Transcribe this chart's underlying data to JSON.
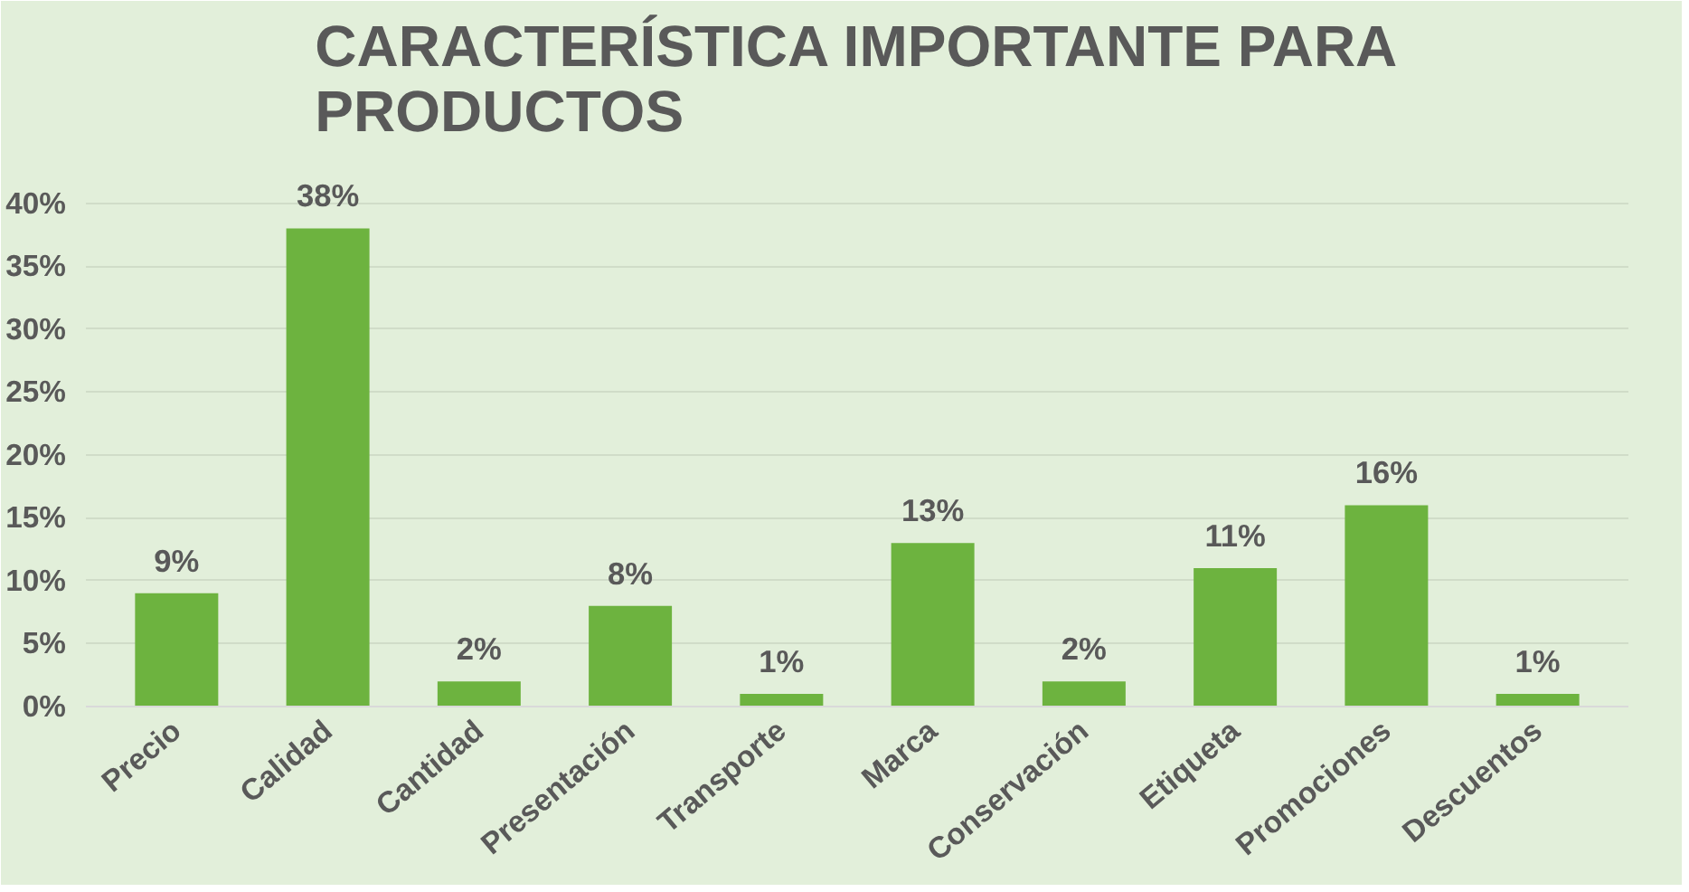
{
  "chart_data": {
    "type": "bar",
    "title": "CARACTERÍSTICA IMPORTANTE PARA PRODUCTOS",
    "categories": [
      "Precio",
      "Calidad",
      "Cantidad",
      "Presentación",
      "Transporte",
      "Marca",
      "Conservación",
      "Etiqueta",
      "Promociones",
      "Descuentos"
    ],
    "values": [
      9,
      38,
      2,
      8,
      1,
      13,
      2,
      11,
      16,
      1
    ],
    "value_labels": [
      "9%",
      "38%",
      "2%",
      "8%",
      "1%",
      "13%",
      "2%",
      "11%",
      "16%",
      "1%"
    ],
    "color": "#6db33f",
    "ylim": [
      0,
      44
    ],
    "yticks": [
      {
        "value": 0,
        "label": "0%"
      },
      {
        "value": 5,
        "label": "5%"
      },
      {
        "value": 10,
        "label": "10%"
      },
      {
        "value": 15,
        "label": "15%"
      },
      {
        "value": 20,
        "label": "20%"
      },
      {
        "value": 25,
        "label": "25%"
      },
      {
        "value": 30,
        "label": "30%"
      },
      {
        "value": 35,
        "label": "35%"
      },
      {
        "value": 40,
        "label": "40%"
      }
    ],
    "grid": "y"
  }
}
